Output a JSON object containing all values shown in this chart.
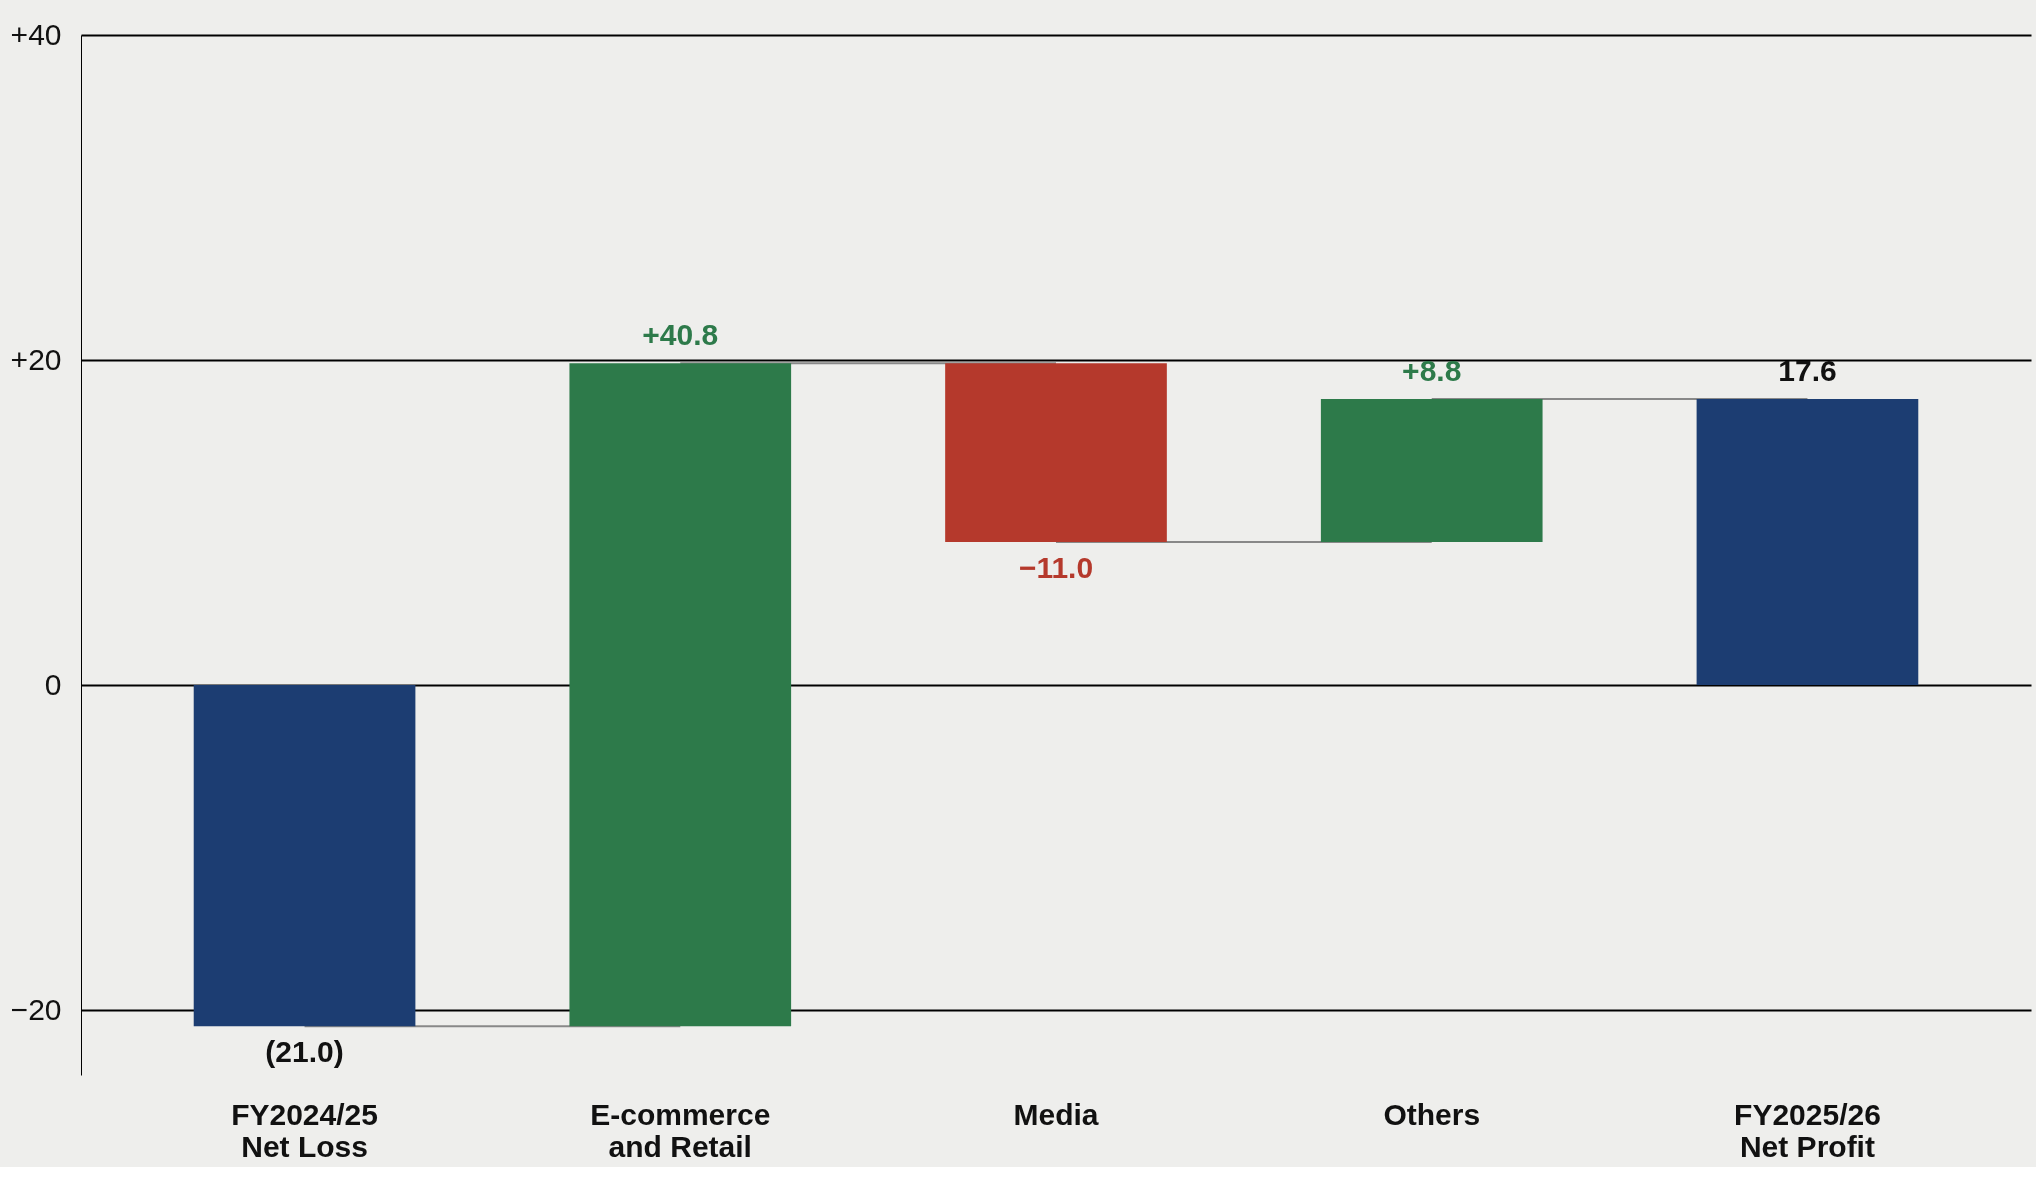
{
  "chart_data": {
    "type": "bar",
    "categories": [
      "FY2024/25\nNet Loss",
      "E-commerce\nand Retail",
      "Media",
      "Others",
      "FY2025/26\nNet Profit"
    ],
    "values": [
      -21.0,
      40.8,
      -11.0,
      8.8,
      17.6
    ],
    "base": [
      0,
      -21.0,
      19.8,
      8.8,
      0
    ],
    "colors": [
      "#1c3d72",
      "#2d7a4a",
      "#b5392c",
      "#2d7a4a",
      "#1c3d72"
    ],
    "value_labels": [
      "(21.0)",
      "+40.8",
      "−11.0",
      "+8.8",
      "17.6"
    ],
    "ylim": [
      -24,
      40
    ],
    "yticks": [
      {
        "value": -20,
        "label": "−20"
      },
      0,
      {
        "value": 20,
        "label": "+20"
      },
      {
        "value": 40,
        "label": "+40"
      }
    ],
    "grid": "y"
  }
}
